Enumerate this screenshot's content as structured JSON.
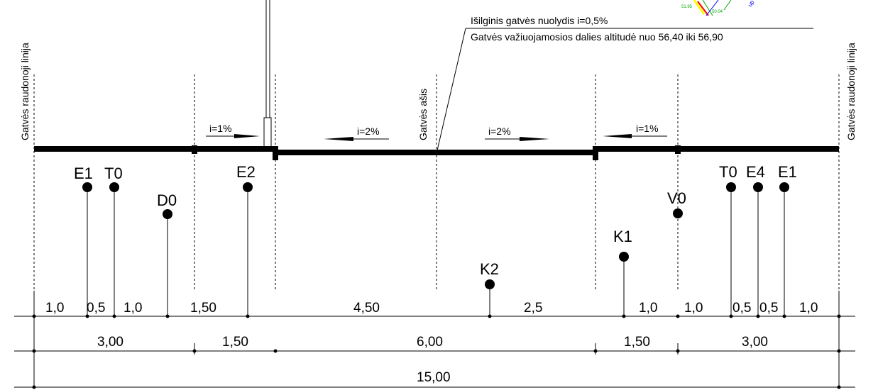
{
  "red_line_labels": {
    "left": "Gatvės raudonoji linija",
    "right": "Gatvės raudonoji linija"
  },
  "axis_label": "Gatvės ašis",
  "annotations": {
    "slope_longitudinal": "Išilginis gatvės nuolydis i=0,5%",
    "altitude": "Gatvės važiuojamosios dalies altitudė nuo 56,40 iki 56,90"
  },
  "slopes": {
    "left_sidewalk": "i=1%",
    "left_road": "i=2%",
    "right_road": "i=2%",
    "right_sidewalk": "i=1%"
  },
  "utilities": {
    "e1_left": "E1",
    "t0_left": "T0",
    "d0": "D0",
    "e2": "E2",
    "k2": "K2",
    "k1": "K1",
    "v0": "V0",
    "t0_right": "T0",
    "e4": "E4",
    "e1_right": "E1"
  },
  "dimensions": {
    "row1": [
      "1,0",
      "0,5",
      "1,0",
      "1,50",
      "4,50",
      "2,5",
      "1,0",
      "1,0",
      "0,5",
      "0,5",
      "1,0"
    ],
    "row2": [
      "3,00",
      "1,50",
      "6,00",
      "1,50",
      "3,00"
    ],
    "total": "15,00"
  },
  "inset_map": {
    "label_a": "51.95",
    "label_b": "50.04",
    "label_c": "up"
  },
  "colors": {
    "line": "#000000",
    "map_green": "#00aa00",
    "map_red": "#ff0000",
    "map_blue": "#0000ff",
    "map_yellow": "#ffff00"
  }
}
